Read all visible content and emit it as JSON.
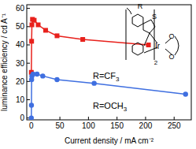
{
  "chart_data": {
    "type": "line",
    "xlabel": "Current density / mA cm⁻²",
    "ylabel": "luminance efficiency / cd A⁻¹",
    "xlim": [
      -8,
      280
    ],
    "xticks": [
      0,
      50,
      100,
      150,
      200,
      250
    ],
    "ylim": [
      -1,
      62
    ],
    "yticks": [
      0,
      10,
      20,
      30,
      40,
      50,
      60
    ],
    "grid": false,
    "annotations": [
      "R",
      "S",
      "Ir",
      "O",
      "O",
      "2"
    ],
    "series": [
      {
        "name": "R=CF3",
        "color": "#e8211c",
        "marker": "square",
        "line_style": "solid",
        "x": [
          0,
          0.5,
          1,
          2,
          5,
          12,
          25,
          45,
          90,
          205
        ],
        "values": [
          25,
          42,
          51,
          54,
          53.5,
          51,
          48,
          45,
          43,
          40
        ]
      },
      {
        "name": "R=OCH3",
        "color": "#3f6fe0",
        "marker": "circle",
        "line_style": "solid",
        "x": [
          0,
          0.2,
          0.5,
          1,
          3,
          10,
          20,
          45,
          110,
          270
        ],
        "values": [
          0,
          7,
          21,
          23,
          24,
          24,
          23,
          21,
          19,
          13
        ]
      }
    ]
  }
}
